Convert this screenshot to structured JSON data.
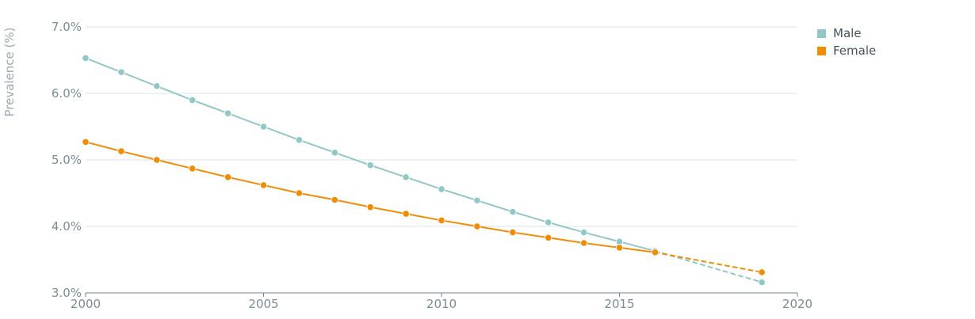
{
  "chart_data": {
    "type": "line",
    "title": "",
    "xlabel": "",
    "ylabel": "Prevalence (%)",
    "xlim": [
      2000,
      2020
    ],
    "ylim": [
      3.0,
      7.0
    ],
    "x_ticks": [
      {
        "value": 2000,
        "label": "2000"
      },
      {
        "value": 2005,
        "label": "2005"
      },
      {
        "value": 2010,
        "label": "2010"
      },
      {
        "value": 2015,
        "label": "2015"
      },
      {
        "value": 2020,
        "label": "2020"
      }
    ],
    "y_ticks": [
      {
        "value": 3.0,
        "label": "3.0%"
      },
      {
        "value": 4.0,
        "label": "4.0%"
      },
      {
        "value": 5.0,
        "label": "5.0%"
      },
      {
        "value": 6.0,
        "label": "6.0%"
      },
      {
        "value": 7.0,
        "label": "7.0%"
      }
    ],
    "grid": true,
    "legend_position": "top-right",
    "series": [
      {
        "name": "Male",
        "color": "#91c8c6",
        "x": [
          2000,
          2001,
          2002,
          2003,
          2004,
          2005,
          2006,
          2007,
          2008,
          2009,
          2010,
          2011,
          2012,
          2013,
          2014,
          2015,
          2016,
          2019
        ],
        "values": [
          6.53,
          6.32,
          6.11,
          5.9,
          5.7,
          5.5,
          5.3,
          5.11,
          4.92,
          4.74,
          4.56,
          4.39,
          4.22,
          4.06,
          3.91,
          3.77,
          3.63,
          3.16
        ],
        "projected_from_x": 2016
      },
      {
        "name": "Female",
        "color": "#f18c05",
        "x": [
          2000,
          2001,
          2002,
          2003,
          2004,
          2005,
          2006,
          2007,
          2008,
          2009,
          2010,
          2011,
          2012,
          2013,
          2014,
          2015,
          2016,
          2019
        ],
        "values": [
          5.27,
          5.13,
          5.0,
          4.87,
          4.74,
          4.62,
          4.5,
          4.4,
          4.29,
          4.19,
          4.09,
          4.0,
          3.91,
          3.83,
          3.75,
          3.68,
          3.61,
          3.31
        ],
        "projected_from_x": 2016
      }
    ]
  }
}
